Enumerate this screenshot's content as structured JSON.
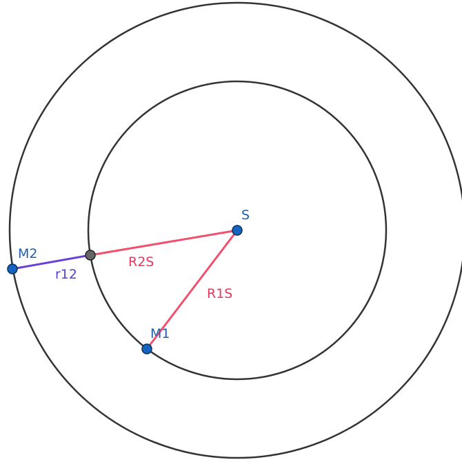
{
  "points": [
    {
      "label": "S"
    },
    {
      "label": "M1"
    },
    {
      "label": "M2"
    }
  ],
  "segments": [
    {
      "label": "R2S"
    },
    {
      "label": "R1S"
    },
    {
      "label": "r12"
    }
  ]
}
